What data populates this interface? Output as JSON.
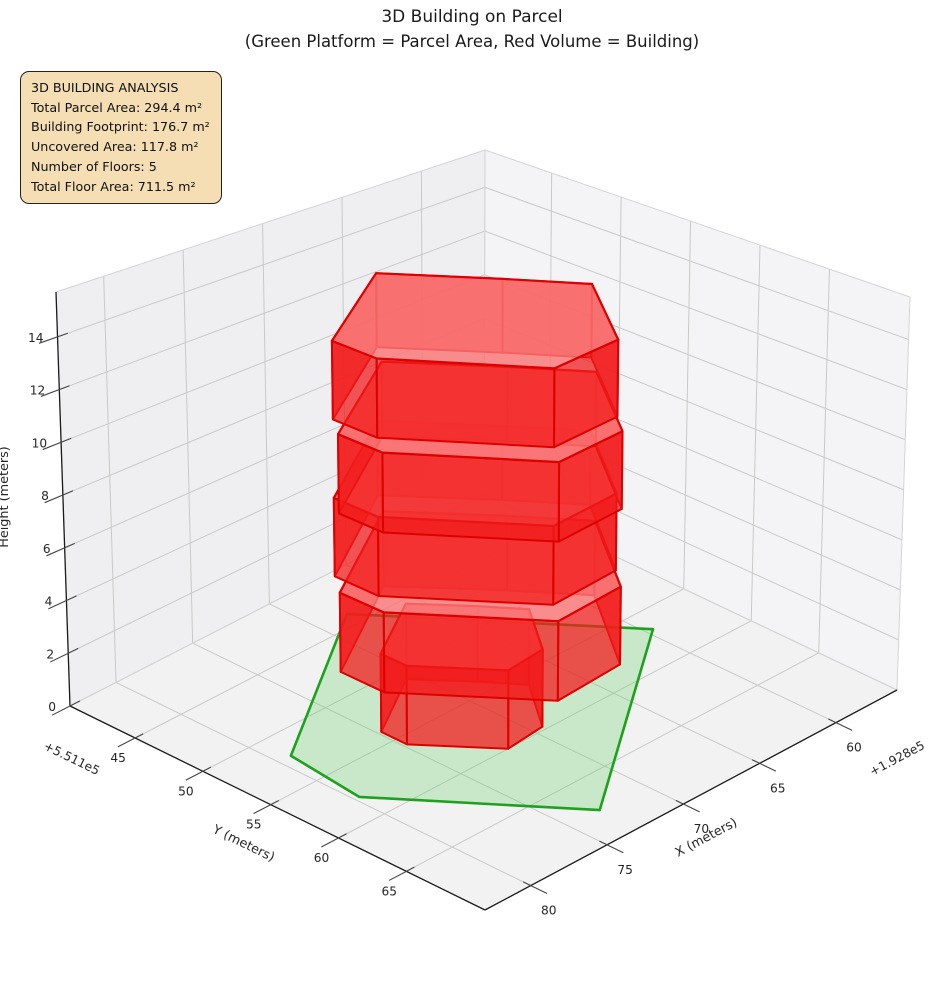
{
  "title": "3D Building on Parcel",
  "subtitle": "(Green Platform = Parcel Area, Red Volume = Building)",
  "info_box": {
    "heading": "3D BUILDING ANALYSIS",
    "lines": [
      "Total Parcel Area: 294.4 m²",
      "Building Footprint: 176.7 m²",
      "Uncovered Area: 117.8 m²",
      "Number of Floors: 5",
      "Total Floor Area: 711.5 m²"
    ],
    "bg_color": "#f5deb3",
    "border_color": "#222222"
  },
  "chart_data": {
    "type": "3d-building-plot",
    "view": {
      "elevation_deg": 30,
      "azimuth_deg": -60,
      "grid": true
    },
    "axes": {
      "x": {
        "label": "X (meters)",
        "ticks": [
          60,
          65,
          70,
          75,
          80
        ],
        "offset_text": "+1.928e5",
        "lim": [
          56,
          83
        ]
      },
      "y": {
        "label": "Y (meters)",
        "ticks": [
          45,
          50,
          55,
          60,
          65
        ],
        "offset_text": "+5.511e5",
        "lim": [
          40.2,
          70.8
        ]
      },
      "z": {
        "label": "Height (meters)",
        "ticks": [
          0,
          2,
          4,
          6,
          8,
          10,
          12,
          14
        ],
        "lim": [
          0,
          15.7
        ]
      }
    },
    "style": {
      "pane_left": "#efeff1",
      "pane_right": "#f4f4f6",
      "pane_floor": "#f2f2f2",
      "grid_color": "#c9c9c9",
      "pane_edge": "#d4d4d4",
      "spine_color": "#1a1a1a",
      "tick_color": "#444444",
      "label_color": "#262626"
    },
    "parcel": {
      "polygon": [
        [
          68.2,
          43.9
        ],
        [
          59.6,
          56.8
        ],
        [
          73.0,
          68.0
        ],
        [
          79.7,
          57.8
        ],
        [
          79.2,
          52.2
        ]
      ],
      "fill": "rgba(105,205,105,0.30)",
      "edge": "#1ca21c",
      "edge_width": 2.6
    },
    "building": {
      "floor_height": 3,
      "side_color": "rgba(241,28,28,0.74)",
      "top_color": "rgba(250,118,118,0.82)",
      "edge_color": "#dd0000",
      "floors": [
        {
          "label": "floor-1",
          "z0": 0,
          "z1": 3,
          "polygon": [
            [
              74.8,
              53.9
            ],
            [
              70.6,
              51.0
            ],
            [
              68.5,
              53.9
            ],
            [
              67.1,
              56.1
            ],
            [
              69.4,
              59.7
            ],
            [
              71.9,
              60.0
            ],
            [
              74.8,
              55.8
            ]
          ]
        },
        {
          "label": "floor-2",
          "z0": 3,
          "z1": 6,
          "polygon": [
            [
              77.3,
              53.8
            ],
            [
              70.1,
              48.8
            ],
            [
              66.5,
              53.8
            ],
            [
              64.1,
              57.5
            ],
            [
              68.0,
              63.8
            ],
            [
              72.4,
              64.2
            ],
            [
              77.3,
              57.0
            ]
          ]
        },
        {
          "label": "floor-3",
          "z0": 6,
          "z1": 9,
          "polygon": [
            [
              76.3,
              52.3
            ],
            [
              69.1,
              47.3
            ],
            [
              65.5,
              52.3
            ],
            [
              63.1,
              56.0
            ],
            [
              67.0,
              62.3
            ],
            [
              71.4,
              62.7
            ],
            [
              76.3,
              55.5
            ]
          ]
        },
        {
          "label": "floor-4",
          "z0": 9,
          "z1": 12,
          "polygon": [
            [
              77.3,
              53.8
            ],
            [
              70.1,
              48.8
            ],
            [
              66.5,
              53.8
            ],
            [
              64.1,
              57.5
            ],
            [
              68.0,
              63.8
            ],
            [
              72.4,
              64.2
            ],
            [
              77.3,
              57.0
            ]
          ]
        },
        {
          "label": "floor-5",
          "z0": 12,
          "z1": 15,
          "polygon": [
            [
              76.3,
              52.3
            ],
            [
              69.1,
              47.3
            ],
            [
              65.5,
              52.3
            ],
            [
              63.1,
              56.0
            ],
            [
              67.0,
              62.3
            ],
            [
              71.4,
              62.7
            ],
            [
              76.3,
              55.5
            ]
          ]
        }
      ]
    }
  }
}
